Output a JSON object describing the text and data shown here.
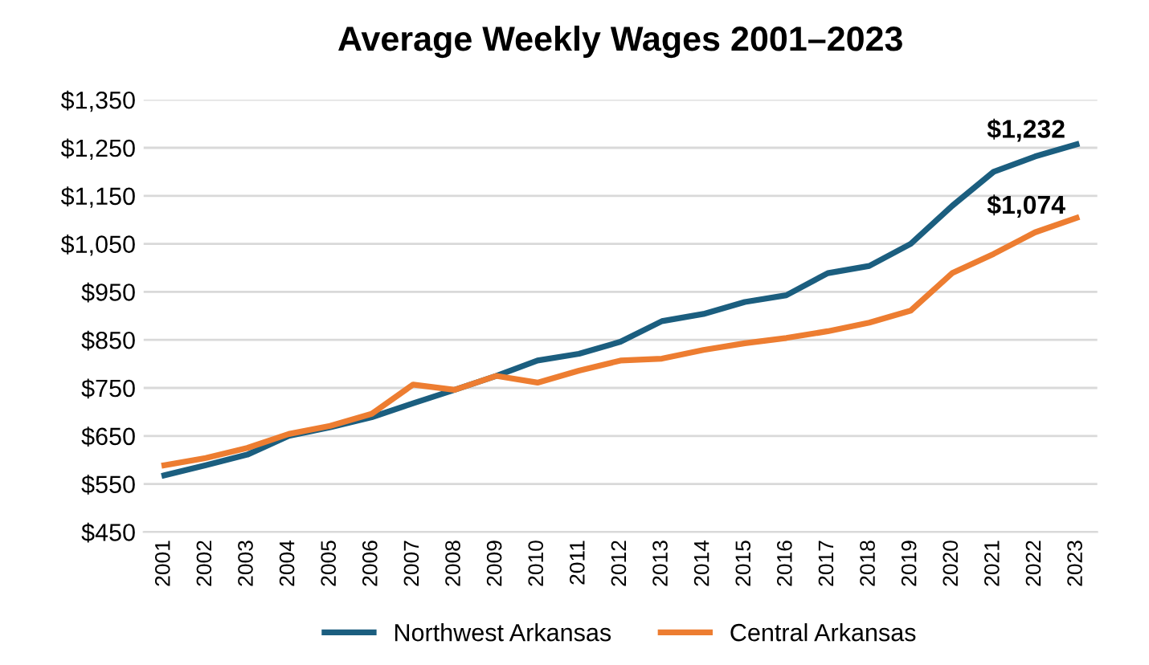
{
  "chart_data": {
    "type": "line",
    "title": "Average Weekly Wages 2001–2023",
    "categories": [
      "2001",
      "2002",
      "2003",
      "2004",
      "2005",
      "2006",
      "2007",
      "2008",
      "2009",
      "2010",
      "2011",
      "2012",
      "2013",
      "2014",
      "2015",
      "2016",
      "2017",
      "2018",
      "2019",
      "2020",
      "2021",
      "2022",
      "2023"
    ],
    "series": [
      {
        "name": "Northwest Arkansas",
        "color": "#1b5e7f",
        "values": [
          568,
          589,
          611,
          650,
          668,
          689,
          718,
          746,
          775,
          807,
          821,
          846,
          889,
          904,
          929,
          943,
          989,
          1004,
          1050,
          1129,
          1200,
          1232,
          1257
        ],
        "value_labels": [
          null,
          null,
          null,
          null,
          null,
          null,
          null,
          null,
          null,
          null,
          null,
          null,
          null,
          null,
          null,
          null,
          null,
          null,
          null,
          null,
          null,
          "$1,232",
          null
        ]
      },
      {
        "name": "Central Arkansas",
        "color": "#ed7d31",
        "values": [
          589,
          604,
          625,
          654,
          671,
          696,
          757,
          746,
          775,
          761,
          786,
          807,
          811,
          829,
          843,
          854,
          868,
          886,
          911,
          989,
          1029,
          1074,
          1104
        ],
        "value_labels": [
          null,
          null,
          null,
          null,
          null,
          null,
          null,
          null,
          null,
          null,
          null,
          null,
          null,
          null,
          null,
          null,
          null,
          null,
          null,
          null,
          null,
          "$1,074",
          null
        ]
      }
    ],
    "ylim": [
      450,
      1350
    ],
    "yticks": [
      {
        "value": 450,
        "label": "$450"
      },
      {
        "value": 550,
        "label": "$550"
      },
      {
        "value": 650,
        "label": "$650"
      },
      {
        "value": 750,
        "label": "$750"
      },
      {
        "value": 850,
        "label": "$850"
      },
      {
        "value": 950,
        "label": "$950"
      },
      {
        "value": 1050,
        "label": "$1,050"
      },
      {
        "value": 1150,
        "label": "$1,150"
      },
      {
        "value": 1250,
        "label": "$1,250"
      },
      {
        "value": 1350,
        "label": "$1,350"
      }
    ],
    "grid": "y",
    "legend": "bottom",
    "marker": "none",
    "line_style": "solid"
  }
}
